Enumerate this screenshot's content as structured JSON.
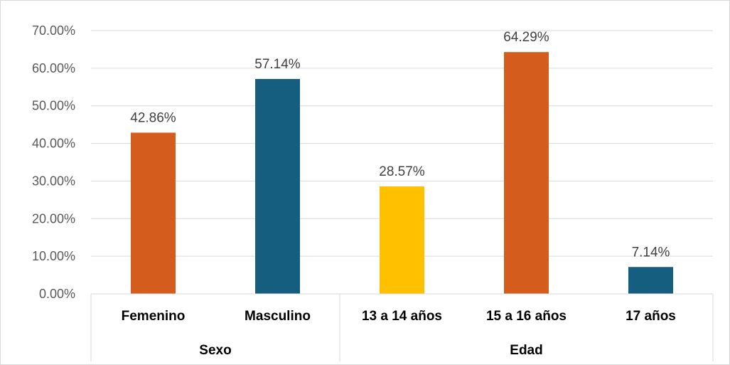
{
  "chart_data": {
    "type": "bar",
    "title": "",
    "xlabel": "",
    "ylabel": "",
    "ylim": [
      0,
      0.7
    ],
    "y_ticks": [
      "0.00%",
      "10.00%",
      "20.00%",
      "30.00%",
      "40.00%",
      "50.00%",
      "60.00%",
      "70.00%"
    ],
    "grid": true,
    "groups": [
      {
        "name": "Sexo",
        "categories": [
          "Femenino",
          "Masculino"
        ]
      },
      {
        "name": "Edad",
        "categories": [
          "13 a 14 años",
          "15 a 16 años",
          "17 años"
        ]
      }
    ],
    "categories": [
      "Femenino",
      "Masculino",
      "13 a 14 años",
      "15 a 16 años",
      "17 años"
    ],
    "values": [
      0.4286,
      0.5714,
      0.2857,
      0.6429,
      0.0714
    ],
    "data_labels": [
      "42.86%",
      "57.14%",
      "28.57%",
      "64.29%",
      "7.14%"
    ],
    "colors": [
      "#d45d1e",
      "#165e80",
      "#ffc000",
      "#d45d1e",
      "#165e80"
    ]
  }
}
